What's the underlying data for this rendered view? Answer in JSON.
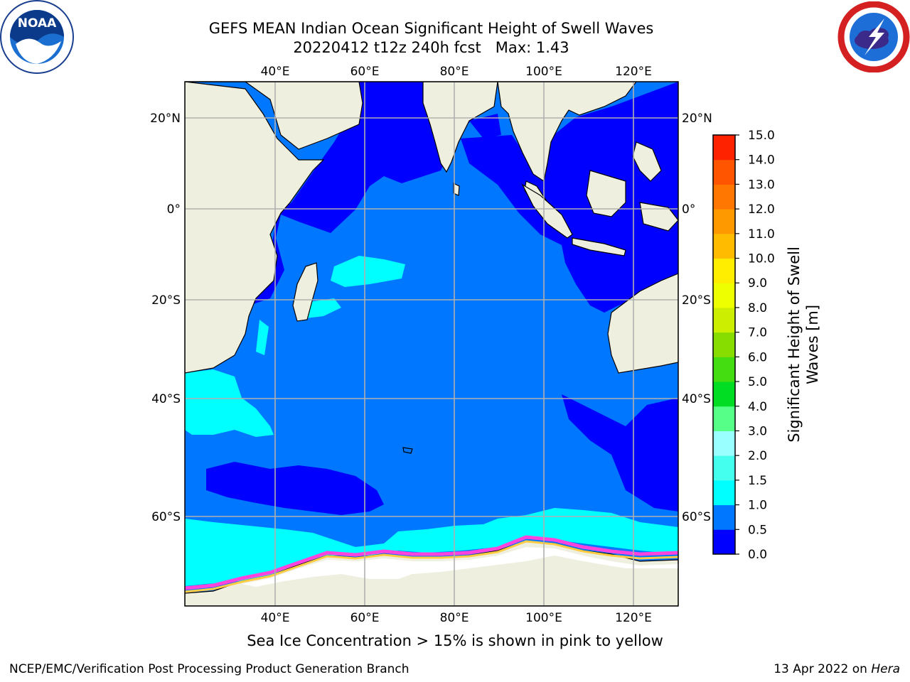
{
  "header": {
    "title_line1": "GEFS MEAN Indian Ocean Significant Height of Swell Waves",
    "title_line2": "20220412 t12z 240h fcst   Max: 1.43"
  },
  "logos": {
    "left": {
      "icon": "noaa-logo",
      "text": "NOAA",
      "ring_text": "NATIONAL OCEANIC AND ATMOSPHERIC ADMINISTRATION · U.S. DEPARTMENT OF COMMERCE"
    },
    "right": {
      "icon": "nws-logo",
      "ring_text": "NATIONAL WEATHER SERVICE"
    }
  },
  "map": {
    "lon_ticks": [
      "40°E",
      "60°E",
      "80°E",
      "100°E",
      "120°E"
    ],
    "lat_ticks": [
      "20°N",
      "0°",
      "20°S",
      "40°S",
      "60°S"
    ],
    "colors": {
      "land": "#efefdf",
      "ocean_0_0_5": "#0000ff",
      "ocean_0_5_1_0": "#0077ff",
      "ocean_1_0_1_5": "#00ffff",
      "ice_white": "#ffffff",
      "ice_pink": "#ff44dd",
      "ice_yellow": "#ffcc44",
      "grid": "#b0b0b0"
    }
  },
  "colorbar": {
    "label_line1": "Significant Height of Swell",
    "label_line2": "Waves [m]",
    "ticks": [
      "0.0",
      "0.5",
      "1.0",
      "1.5",
      "2.0",
      "3.0",
      "4.0",
      "5.0",
      "6.0",
      "7.0",
      "8.0",
      "9.0",
      "10.0",
      "11.0",
      "12.0",
      "13.0",
      "14.0",
      "15.0"
    ],
    "colors": [
      "#0000ff",
      "#0077ff",
      "#00ffff",
      "#44ffee",
      "#99ffff",
      "#55ff88",
      "#00dd22",
      "#44dd11",
      "#88dd00",
      "#ccee00",
      "#eeff00",
      "#ffee00",
      "#ffbb00",
      "#ff9900",
      "#ff7700",
      "#ff5500",
      "#ff2200"
    ]
  },
  "caption": "Sea Ice Concentration > 15% is shown in pink to yellow",
  "footer": {
    "left": "NCEP/EMC/Verification Post Processing Product Generation Branch",
    "right_prefix": "13 Apr 2022 on ",
    "right_host": "Hera"
  }
}
